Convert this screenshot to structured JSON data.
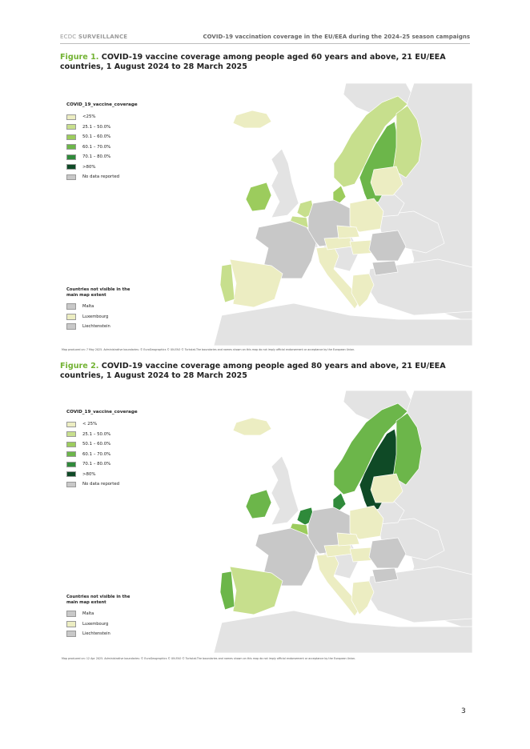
{
  "header": {
    "org": "ECDC",
    "section": "SURVEILLANCE",
    "doc_title": "COVID-19 vaccination coverage in the EU/EEA during the 2024–25 season campaigns"
  },
  "colors": {
    "lt25": "#ecedc2",
    "c25_50": "#c7df8d",
    "c50_60": "#9ccc5d",
    "c60_70": "#6cb64a",
    "c70_80": "#2f8a3a",
    "gt80": "#0f4a26",
    "nodata": "#c8c8c8",
    "background_land": "#e3e3e3",
    "figure_label": "#72b232"
  },
  "figures": [
    {
      "label": "Figure 1.",
      "title": "COVID-19 vaccine coverage among people aged 60 years and above, 21 EU/EEA countries, 1 August 2024 to 28 March 2025",
      "legend_title": "COVID_19_vaccine_coverage",
      "legend": [
        "<25%",
        "25.1 – 50.0%",
        "50.1 – 60.0%",
        "60.1 – 70.0%",
        "70.1 – 80.0%",
        ">80%",
        "No data reported"
      ],
      "inset_title": "Countries not visible in the main map extent",
      "inset": [
        {
          "name": "Malta",
          "color": "#c8c8c8"
        },
        {
          "name": "Luxembourg",
          "color": "#ecedc2"
        },
        {
          "name": "Liechtenstein",
          "color": "#c8c8c8"
        }
      ],
      "credit": "Map produced on: 7 May 2025. Administrative boundaries: © EuroGeographics © UN-FAO © Turkstat.The boundaries and names shown on this map do not imply official endorsement or acceptance by the European Union.",
      "countries": {
        "norway": "#c7df8d",
        "sweden": "#6cb64a",
        "finland": "#c7df8d",
        "denmark": "#9ccc5d",
        "ireland": "#9ccc5d",
        "netherlands": "#c7df8d",
        "belgium": "#c7df8d",
        "germany": "#c8c8c8",
        "france": "#c8c8c8",
        "spain": "#ecedc2",
        "portugal": "#c7df8d",
        "italy": "#ecedc2",
        "poland": "#ecedc2",
        "baltics": "#ecedc2",
        "austria": "#ecedc2",
        "czechia": "#ecedc2",
        "hungary": "#ecedc2",
        "romania": "#c8c8c8",
        "bulgaria": "#c8c8c8",
        "greece": "#ecedc2",
        "iceland": "#ecedc2"
      }
    },
    {
      "label": "Figure 2.",
      "title": "COVID-19 vaccine coverage among people aged 80 years and above, 21 EU/EEA countries, 1 August 2024 to 28 March 2025",
      "legend_title": "COVID_19_vaccine_coverage",
      "legend": [
        "< 25%",
        "25.1 – 50.0%",
        "50.1 – 60.0%",
        "60.1 – 70.0%",
        "70.1 – 80.0%",
        ">80%",
        "No data reported"
      ],
      "inset_title": "Countries not visible in the main map extent",
      "inset": [
        {
          "name": "Malta",
          "color": "#c8c8c8"
        },
        {
          "name": "Luxembourg",
          "color": "#ecedc2"
        },
        {
          "name": "Liechtenstein",
          "color": "#c8c8c8"
        }
      ],
      "credit": "Map produced on: 12 Apr 2025. Administrative boundaries: © EuroGeographics © UN-FAO © Turkstat.The boundaries and names shown on this map do not imply official endorsement or acceptance by the European Union.",
      "countries": {
        "norway": "#6cb64a",
        "sweden": "#0f4a26",
        "finland": "#6cb64a",
        "denmark": "#2f8a3a",
        "ireland": "#6cb64a",
        "netherlands": "#2f8a3a",
        "belgium": "#9ccc5d",
        "germany": "#c8c8c8",
        "france": "#c8c8c8",
        "spain": "#c7df8d",
        "portugal": "#6cb64a",
        "italy": "#ecedc2",
        "poland": "#ecedc2",
        "baltics": "#ecedc2",
        "austria": "#ecedc2",
        "czechia": "#ecedc2",
        "hungary": "#ecedc2",
        "romania": "#c8c8c8",
        "bulgaria": "#c8c8c8",
        "greece": "#ecedc2",
        "iceland": "#ecedc2"
      }
    }
  ],
  "page_number": "3"
}
